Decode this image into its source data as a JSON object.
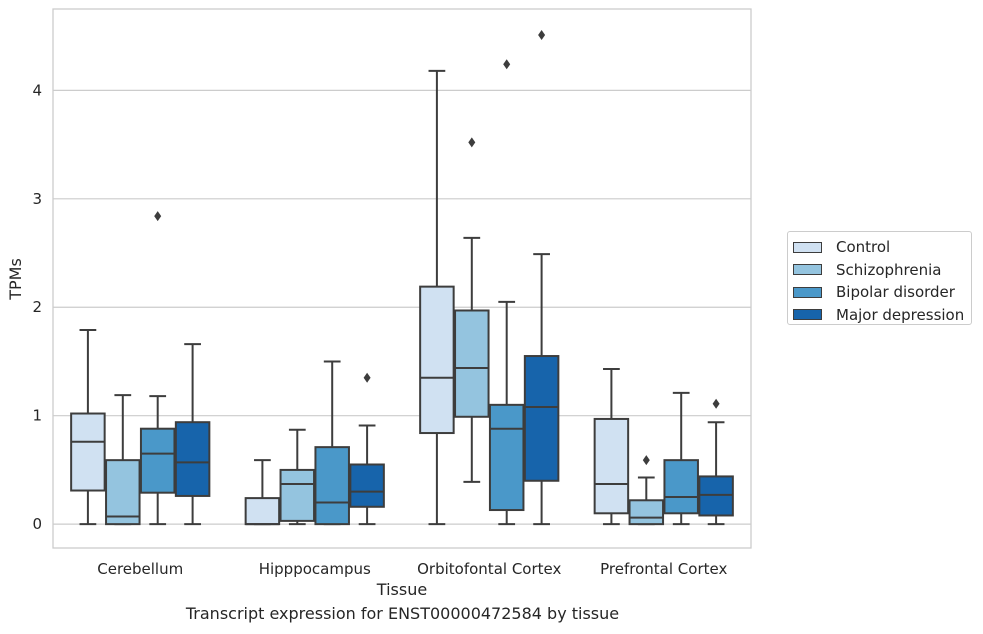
{
  "caption": "Transcript expression for ENST00000472584 by tissue",
  "chart_data": {
    "type": "box",
    "xlabel": "Tissue",
    "ylabel": "TPMs",
    "ylim": [
      -0.22,
      4.75
    ],
    "yticks": [
      0,
      1,
      2,
      3,
      4
    ],
    "grid": "horizontal",
    "legend_position": "right",
    "categories": [
      "Cerebellum",
      "Hipppocampus",
      "Orbitofontal Cortex",
      "Prefrontal Cortex"
    ],
    "series": [
      {
        "name": "Control",
        "color": "#d0e1f2",
        "boxes": [
          {
            "whisker_low": 0,
            "q1": 0.31,
            "median": 0.76,
            "q3": 1.02,
            "whisker_high": 1.79,
            "outliers": []
          },
          {
            "whisker_low": 0,
            "q1": 0.0,
            "median": 0.0,
            "q3": 0.24,
            "whisker_high": 0.59,
            "outliers": []
          },
          {
            "whisker_low": 0,
            "q1": 0.84,
            "median": 1.35,
            "q3": 2.19,
            "whisker_high": 4.18,
            "outliers": []
          },
          {
            "whisker_low": 0,
            "q1": 0.1,
            "median": 0.37,
            "q3": 0.97,
            "whisker_high": 1.43,
            "outliers": []
          }
        ]
      },
      {
        "name": "Schizophrenia",
        "color": "#94c4df",
        "boxes": [
          {
            "whisker_low": 0,
            "q1": 0.0,
            "median": 0.07,
            "q3": 0.59,
            "whisker_high": 1.19,
            "outliers": []
          },
          {
            "whisker_low": 0,
            "q1": 0.03,
            "median": 0.37,
            "q3": 0.5,
            "whisker_high": 0.87,
            "outliers": []
          },
          {
            "whisker_low": 0.39,
            "q1": 0.99,
            "median": 1.44,
            "q3": 1.97,
            "whisker_high": 2.64,
            "outliers": [
              3.52
            ]
          },
          {
            "whisker_low": 0,
            "q1": 0.0,
            "median": 0.06,
            "q3": 0.22,
            "whisker_high": 0.43,
            "outliers": [
              0.59
            ]
          }
        ]
      },
      {
        "name": "Bipolar disorder",
        "color": "#4a98c9",
        "boxes": [
          {
            "whisker_low": 0,
            "q1": 0.29,
            "median": 0.65,
            "q3": 0.88,
            "whisker_high": 1.18,
            "outliers": [
              2.84
            ]
          },
          {
            "whisker_low": 0,
            "q1": 0.0,
            "median": 0.2,
            "q3": 0.71,
            "whisker_high": 1.5,
            "outliers": []
          },
          {
            "whisker_low": 0,
            "q1": 0.13,
            "median": 0.88,
            "q3": 1.1,
            "whisker_high": 2.05,
            "outliers": [
              4.24
            ]
          },
          {
            "whisker_low": 0,
            "q1": 0.1,
            "median": 0.25,
            "q3": 0.59,
            "whisker_high": 1.21,
            "outliers": []
          }
        ]
      },
      {
        "name": "Major depression",
        "color": "#1764ab",
        "boxes": [
          {
            "whisker_low": 0,
            "q1": 0.26,
            "median": 0.57,
            "q3": 0.94,
            "whisker_high": 1.66,
            "outliers": []
          },
          {
            "whisker_low": 0,
            "q1": 0.16,
            "median": 0.3,
            "q3": 0.55,
            "whisker_high": 0.91,
            "outliers": [
              1.35
            ]
          },
          {
            "whisker_low": 0,
            "q1": 0.4,
            "median": 1.08,
            "q3": 1.55,
            "whisker_high": 2.49,
            "outliers": [
              4.51
            ]
          },
          {
            "whisker_low": 0,
            "q1": 0.08,
            "median": 0.27,
            "q3": 0.44,
            "whisker_high": 0.94,
            "outliers": [
              1.11
            ]
          }
        ]
      }
    ]
  }
}
